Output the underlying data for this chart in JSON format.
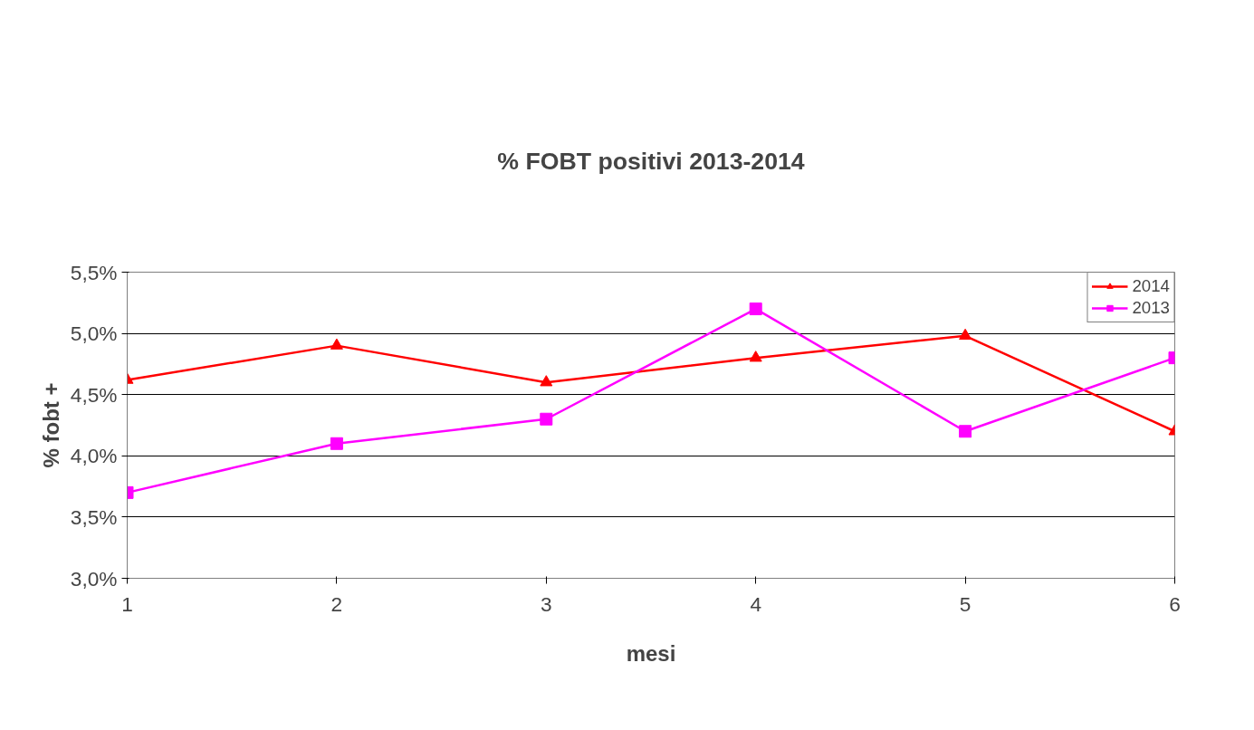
{
  "chart_data": {
    "type": "line",
    "title": "% FOBT positivi 2013-2014",
    "xlabel": "mesi",
    "ylabel": "% fobt +",
    "x": [
      1,
      2,
      3,
      4,
      5,
      6
    ],
    "series": [
      {
        "name": "2014",
        "color": "#ff0000",
        "marker": "triangle",
        "values": [
          4.62,
          4.9,
          4.6,
          4.8,
          4.98,
          4.2
        ]
      },
      {
        "name": "2013",
        "color": "#ff00ff",
        "marker": "square",
        "values": [
          3.7,
          4.1,
          4.3,
          5.2,
          4.2,
          4.8
        ]
      }
    ],
    "xlim": [
      1,
      6
    ],
    "xticks": [
      1,
      2,
      3,
      4,
      5,
      6
    ],
    "ylim": [
      3.0,
      5.5
    ],
    "yticks": [
      {
        "value": 3.0,
        "label": "3,0%"
      },
      {
        "value": 3.5,
        "label": "3,5%"
      },
      {
        "value": 4.0,
        "label": "4,0%"
      },
      {
        "value": 4.5,
        "label": "4,5%"
      },
      {
        "value": 5.0,
        "label": "5,0%"
      },
      {
        "value": 5.5,
        "label": "5,5%"
      }
    ],
    "grid": "y",
    "legend": "top right",
    "line_style": "solid"
  }
}
